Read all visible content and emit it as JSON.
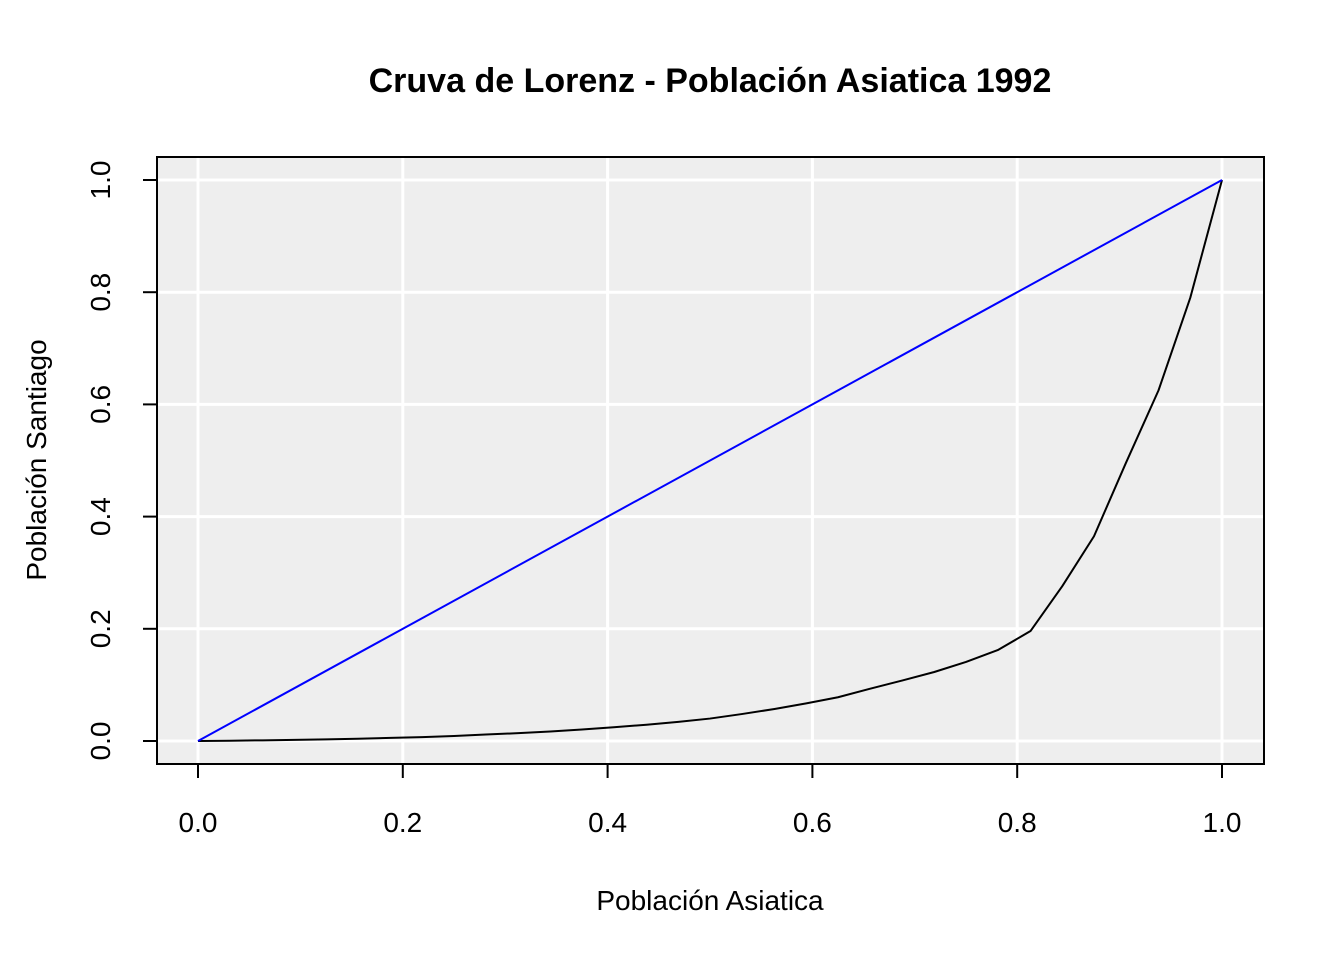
{
  "chart_data": {
    "type": "line",
    "title": "Cruva de Lorenz - Población Asiatica 1992",
    "xlabel": "Población Asiatica",
    "ylabel": "Población Santiago",
    "xlim": [
      0,
      1
    ],
    "ylim": [
      0,
      1
    ],
    "x_ticks": [
      "0.0",
      "0.2",
      "0.4",
      "0.6",
      "0.8",
      "1.0"
    ],
    "y_ticks": [
      "0.0",
      "0.2",
      "0.4",
      "0.6",
      "0.8",
      "1.0"
    ],
    "grid": true,
    "background_color": "#eeeeee",
    "series": [
      {
        "color": "#000000",
        "x": [
          0,
          0.031,
          0.063,
          0.094,
          0.125,
          0.156,
          0.188,
          0.219,
          0.25,
          0.281,
          0.313,
          0.344,
          0.375,
          0.406,
          0.438,
          0.469,
          0.5,
          0.531,
          0.563,
          0.594,
          0.625,
          0.656,
          0.688,
          0.719,
          0.75,
          0.781,
          0.813,
          0.844,
          0.875,
          0.906,
          0.938,
          0.969,
          1.0
        ],
        "y": [
          0,
          0.0005,
          0.0012,
          0.002,
          0.003,
          0.004,
          0.0055,
          0.007,
          0.009,
          0.0115,
          0.014,
          0.017,
          0.0205,
          0.0245,
          0.029,
          0.034,
          0.04,
          0.048,
          0.057,
          0.067,
          0.078,
          0.093,
          0.108,
          0.123,
          0.141,
          0.162,
          0.196,
          0.276,
          0.365,
          0.495,
          0.625,
          0.79,
          1.0
        ]
      },
      {
        "color": "#0000ff",
        "x": [
          0,
          1
        ],
        "y": [
          0,
          1
        ]
      }
    ]
  }
}
